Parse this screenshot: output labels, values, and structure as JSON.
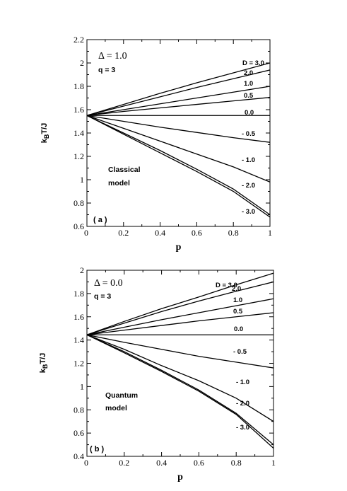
{
  "chart_data": [
    {
      "type": "line",
      "panel_label": "( a )",
      "xlabel": "p",
      "ylabel": "k_BT/J",
      "xlim": [
        0,
        1
      ],
      "ylim": [
        0.6,
        2.2
      ],
      "x_ticks": [
        "0",
        "0.2",
        "0.4",
        "0.6",
        "0.8",
        "1"
      ],
      "y_ticks": [
        "0.6",
        "0.8",
        "1",
        "1.2",
        "1.4",
        "1.6",
        "1.8",
        "2",
        "2.2"
      ],
      "annotations": [
        "Δ = 1.0",
        "q = 3",
        "Classical",
        "model"
      ],
      "x": [
        0,
        0.2,
        0.4,
        0.6,
        0.8,
        1.0
      ],
      "series": [
        {
          "label": "D = 3.0",
          "values": [
            1.55,
            1.645,
            1.74,
            1.83,
            1.915,
            2.0
          ]
        },
        {
          "label": "2.0",
          "values": [
            1.55,
            1.63,
            1.71,
            1.79,
            1.865,
            1.94
          ]
        },
        {
          "label": "1.0",
          "values": [
            1.55,
            1.6,
            1.65,
            1.7,
            1.75,
            1.8
          ]
        },
        {
          "label": "0.5",
          "values": [
            1.55,
            1.585,
            1.615,
            1.645,
            1.675,
            1.705
          ]
        },
        {
          "label": "0.0",
          "values": [
            1.55,
            1.55,
            1.55,
            1.55,
            1.55,
            1.55
          ]
        },
        {
          "label": "- 0.5",
          "values": [
            1.55,
            1.5,
            1.45,
            1.405,
            1.36,
            1.32
          ]
        },
        {
          "label": "- 1.0",
          "values": [
            1.55,
            1.44,
            1.33,
            1.22,
            1.11,
            0.98
          ]
        },
        {
          "label": "- 2.0",
          "values": [
            1.55,
            1.4,
            1.25,
            1.09,
            0.92,
            0.7
          ]
        },
        {
          "label": "- 3.0",
          "values": [
            1.55,
            1.39,
            1.23,
            1.07,
            0.9,
            0.68
          ]
        }
      ]
    },
    {
      "type": "line",
      "panel_label": "( b )",
      "xlabel": "p",
      "ylabel": "k_BT/J",
      "xlim": [
        0,
        1
      ],
      "ylim": [
        0.4,
        2.0
      ],
      "x_ticks": [
        "0",
        "0.2",
        "0.4",
        "0.6",
        "0.8",
        "1"
      ],
      "y_ticks": [
        "0.4",
        "0.6",
        "0.8",
        "1",
        "1.2",
        "1.4",
        "1.6",
        "1.8",
        "2"
      ],
      "annotations": [
        "Δ = 0.0",
        "q = 3",
        "Quantum",
        "model"
      ],
      "x": [
        0,
        0.2,
        0.4,
        0.6,
        0.8,
        1.0
      ],
      "series": [
        {
          "label": "D = 3.0",
          "values": [
            1.445,
            1.56,
            1.67,
            1.77,
            1.875,
            1.975
          ]
        },
        {
          "label": "2.0",
          "values": [
            1.445,
            1.545,
            1.645,
            1.735,
            1.82,
            1.9
          ]
        },
        {
          "label": "1.0",
          "values": [
            1.445,
            1.51,
            1.575,
            1.635,
            1.695,
            1.755
          ]
        },
        {
          "label": "0.5",
          "values": [
            1.445,
            1.485,
            1.525,
            1.565,
            1.6,
            1.635
          ]
        },
        {
          "label": "0.0",
          "values": [
            1.445,
            1.445,
            1.445,
            1.445,
            1.445,
            1.445
          ]
        },
        {
          "label": "- 0.5",
          "values": [
            1.445,
            1.38,
            1.32,
            1.26,
            1.21,
            1.16
          ]
        },
        {
          "label": "- 1.0",
          "values": [
            1.445,
            1.32,
            1.18,
            1.05,
            0.9,
            0.7
          ]
        },
        {
          "label": "- 2.0",
          "values": [
            1.445,
            1.3,
            1.14,
            0.97,
            0.77,
            0.5
          ]
        },
        {
          "label": "- 3.0",
          "values": [
            1.445,
            1.29,
            1.13,
            0.96,
            0.76,
            0.47
          ]
        }
      ]
    }
  ]
}
